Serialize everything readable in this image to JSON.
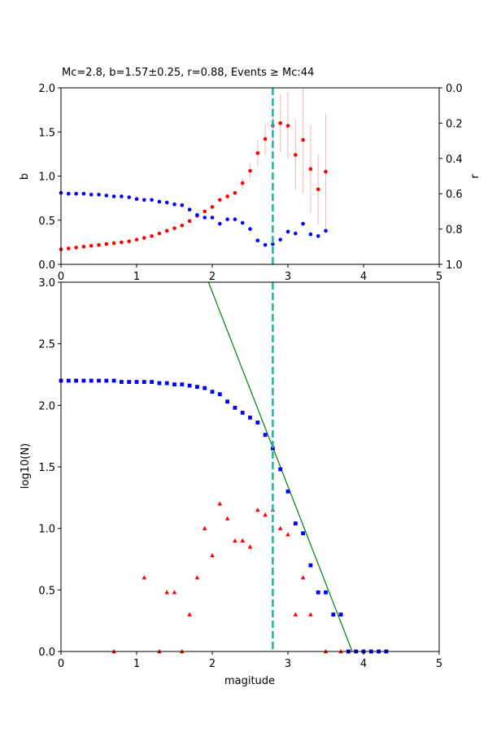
{
  "chart_data": [
    {
      "type": "scatter",
      "title": "Mc=2.8, b=1.57±0.25, r=0.88, Events ≥ Mc:44",
      "xlabel": "",
      "ylabel": "b",
      "y2label": "r",
      "xlim": [
        0,
        5
      ],
      "ylim": [
        0,
        2.0
      ],
      "y2lim": [
        1.0,
        0.0
      ],
      "xticks": [
        "0",
        "1",
        "2",
        "3",
        "4",
        "5"
      ],
      "yticks": [
        "0.0",
        "0.5",
        "1.0",
        "1.5",
        "2.0"
      ],
      "y2ticks": [
        "0.0",
        "0.2",
        "0.4",
        "0.6",
        "0.8",
        "1.0"
      ],
      "mc_line": 2.8,
      "colors": {
        "b": "#ff0000",
        "r": "#0000ff",
        "errorbar": "#ffb3b3",
        "mc": "#20b2aa"
      },
      "series": [
        {
          "role": "b",
          "x": [
            0.0,
            0.1,
            0.2,
            0.3,
            0.4,
            0.5,
            0.6,
            0.7,
            0.8,
            0.9,
            1.0,
            1.1,
            1.2,
            1.3,
            1.4,
            1.5,
            1.6,
            1.7,
            1.8,
            1.9,
            2.0,
            2.1,
            2.2,
            2.3,
            2.4,
            2.5,
            2.6,
            2.7,
            2.8,
            2.9,
            3.0,
            3.1,
            3.2,
            3.3,
            3.4,
            3.5
          ],
          "y": [
            0.17,
            0.18,
            0.19,
            0.2,
            0.21,
            0.22,
            0.23,
            0.24,
            0.25,
            0.26,
            0.28,
            0.3,
            0.32,
            0.35,
            0.38,
            0.41,
            0.44,
            0.49,
            0.55,
            0.6,
            0.65,
            0.73,
            0.77,
            0.81,
            0.92,
            1.06,
            1.26,
            1.42,
            1.57,
            1.6,
            1.57,
            1.24,
            1.41,
            1.08,
            0.85,
            1.05
          ],
          "err": [
            0,
            0,
            0,
            0,
            0,
            0,
            0,
            0,
            0,
            0,
            0,
            0,
            0,
            0,
            0,
            0,
            0,
            0,
            0,
            0,
            0,
            0,
            0,
            0.02,
            0.06,
            0.09,
            0.15,
            0.18,
            0.25,
            0.33,
            0.38,
            0.4,
            0.6,
            0.5,
            0.4,
            0.65
          ]
        },
        {
          "role": "r",
          "x": [
            0.0,
            0.1,
            0.2,
            0.3,
            0.4,
            0.5,
            0.6,
            0.7,
            0.8,
            0.9,
            1.0,
            1.1,
            1.2,
            1.3,
            1.4,
            1.5,
            1.6,
            1.7,
            1.8,
            1.9,
            2.0,
            2.1,
            2.2,
            2.3,
            2.4,
            2.5,
            2.6,
            2.7,
            2.8,
            2.9,
            3.0,
            3.1,
            3.2,
            3.3,
            3.4,
            3.5
          ],
          "y": [
            0.595,
            0.6,
            0.6,
            0.6,
            0.605,
            0.605,
            0.61,
            0.615,
            0.615,
            0.62,
            0.63,
            0.635,
            0.635,
            0.645,
            0.65,
            0.66,
            0.665,
            0.69,
            0.72,
            0.735,
            0.735,
            0.77,
            0.745,
            0.745,
            0.765,
            0.8,
            0.865,
            0.89,
            0.885,
            0.86,
            0.815,
            0.825,
            0.77,
            0.83,
            0.84,
            0.81
          ]
        }
      ]
    },
    {
      "type": "scatter",
      "title": "",
      "xlabel": "magitude",
      "ylabel": "log10(N)",
      "xlim": [
        0,
        5
      ],
      "ylim": [
        0,
        3.0
      ],
      "xticks": [
        "0",
        "1",
        "2",
        "3",
        "4",
        "5"
      ],
      "yticks": [
        "0.0",
        "0.5",
        "1.0",
        "1.5",
        "2.0",
        "2.5",
        "3.0"
      ],
      "mc_line": 2.8,
      "fit_line": {
        "x": [
          1.95,
          3.85
        ],
        "y": [
          3.0,
          0.0
        ]
      },
      "colors": {
        "cumulative": "#0000ff",
        "incremental": "#ff0000",
        "fit": "#008000",
        "mc": "#20b2aa"
      },
      "series": [
        {
          "role": "cumulative",
          "x": [
            0.0,
            0.1,
            0.2,
            0.3,
            0.4,
            0.5,
            0.6,
            0.7,
            0.8,
            0.9,
            1.0,
            1.1,
            1.2,
            1.3,
            1.4,
            1.5,
            1.6,
            1.7,
            1.8,
            1.9,
            2.0,
            2.1,
            2.2,
            2.3,
            2.4,
            2.5,
            2.6,
            2.7,
            2.8,
            2.9,
            3.0,
            3.1,
            3.2,
            3.3,
            3.4,
            3.5,
            3.6,
            3.7,
            3.8,
            3.9,
            4.0,
            4.1,
            4.2,
            4.3
          ],
          "y": [
            2.2,
            2.2,
            2.2,
            2.2,
            2.2,
            2.2,
            2.2,
            2.2,
            2.19,
            2.19,
            2.19,
            2.19,
            2.19,
            2.18,
            2.18,
            2.17,
            2.17,
            2.16,
            2.15,
            2.14,
            2.11,
            2.09,
            2.03,
            1.98,
            1.94,
            1.9,
            1.86,
            1.76,
            1.65,
            1.48,
            1.3,
            1.04,
            0.96,
            0.7,
            0.48,
            0.48,
            0.3,
            0.3,
            0.0,
            0.0,
            0.0,
            0.0,
            0.0,
            0.0
          ]
        },
        {
          "role": "incremental",
          "x": [
            0.7,
            1.1,
            1.3,
            1.4,
            1.5,
            1.6,
            1.7,
            1.8,
            1.9,
            2.0,
            2.1,
            2.2,
            2.3,
            2.4,
            2.5,
            2.6,
            2.7,
            2.8,
            2.9,
            3.0,
            3.1,
            3.2,
            3.3,
            3.5,
            3.7
          ],
          "y": [
            0.0,
            0.6,
            0.0,
            0.48,
            0.48,
            0.0,
            0.3,
            0.6,
            1.0,
            0.78,
            1.2,
            1.08,
            0.9,
            0.9,
            0.85,
            1.15,
            1.11,
            1.15,
            1.0,
            0.95,
            0.3,
            0.6,
            0.3,
            0.0,
            0.0
          ]
        }
      ]
    }
  ]
}
